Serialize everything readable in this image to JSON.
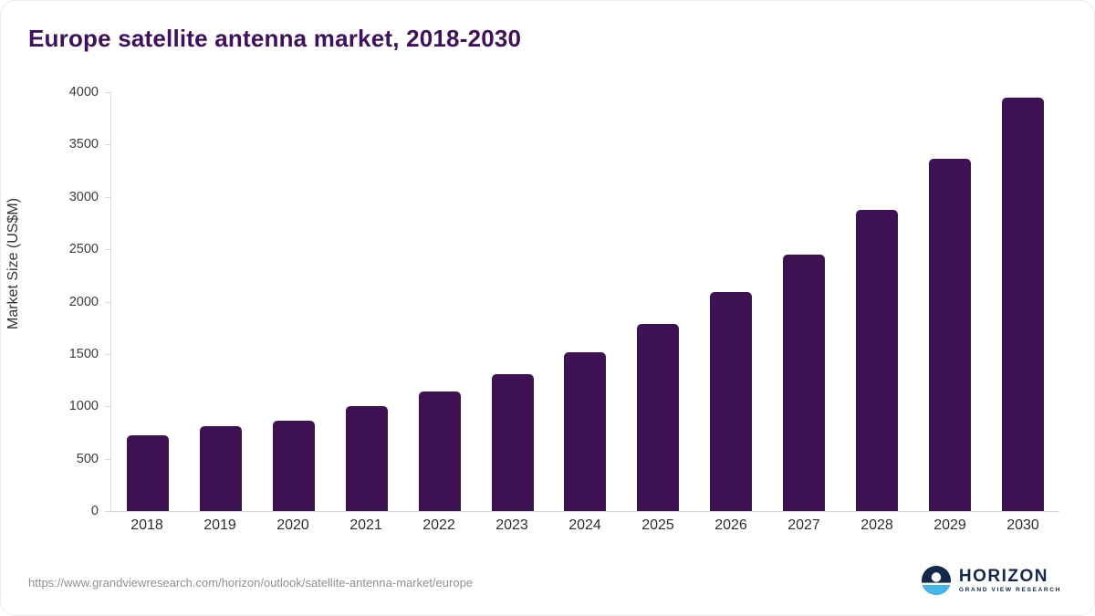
{
  "chart_data": {
    "type": "bar",
    "title": "Europe satellite antenna market, 2018-2030",
    "ylabel": "Market Size (US$M)",
    "xlabel": "",
    "categories": [
      "2018",
      "2019",
      "2020",
      "2021",
      "2022",
      "2023",
      "2024",
      "2025",
      "2026",
      "2027",
      "2028",
      "2029",
      "2030"
    ],
    "values": [
      720,
      810,
      865,
      1000,
      1140,
      1305,
      1520,
      1785,
      2090,
      2445,
      2875,
      3360,
      3950
    ],
    "ylim": [
      0,
      4000
    ],
    "yticks": [
      0,
      500,
      1000,
      1500,
      2000,
      2500,
      3000,
      3500,
      4000
    ],
    "bar_color": "#3e1152",
    "title_color": "#40105c",
    "grid": false,
    "legend": false
  },
  "footer": {
    "source_url": "https://www.grandviewresearch.com/horizon/outlook/satellite-antenna-market/europe",
    "logo_name": "HORIZON",
    "logo_sub": "GRAND VIEW RESEARCH"
  }
}
